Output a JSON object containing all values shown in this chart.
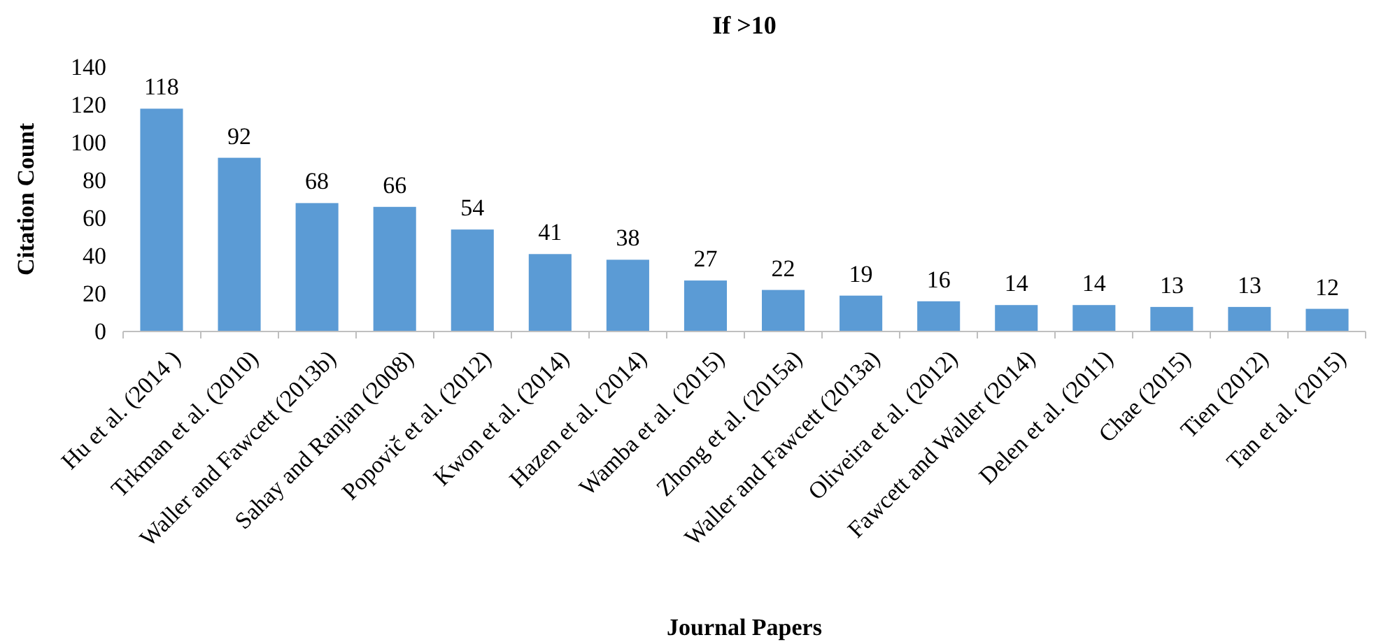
{
  "chart_data": {
    "type": "bar",
    "title": "If >10",
    "xlabel": "Journal Papers",
    "ylabel": "Citation Count",
    "categories": [
      "Hu et al. (2014 )",
      "Trkman et al. (2010)",
      "Waller and Fawcett (2013b)",
      "Sahay and Ranjan (2008)",
      "Popovič et al. (2012)",
      "Kwon et al. (2014)",
      "Hazen et al. (2014)",
      "Wamba et al. (2015)",
      "Zhong et al. (2015a)",
      "Waller and Fawcett (2013a)",
      "Oliveira et al. (2012)",
      "Fawcett and Waller (2014)",
      "Delen et al. (2011)",
      "Chae (2015)",
      "Tien (2012)",
      "Tan et al. (2015)"
    ],
    "values": [
      118,
      92,
      68,
      66,
      54,
      41,
      38,
      27,
      22,
      19,
      16,
      14,
      14,
      13,
      13,
      12
    ],
    "color": "#5b9bd5",
    "ylim": [
      0,
      140
    ],
    "yticks": [
      0,
      20,
      40,
      60,
      80,
      100,
      120,
      140
    ],
    "data_labels": true
  }
}
